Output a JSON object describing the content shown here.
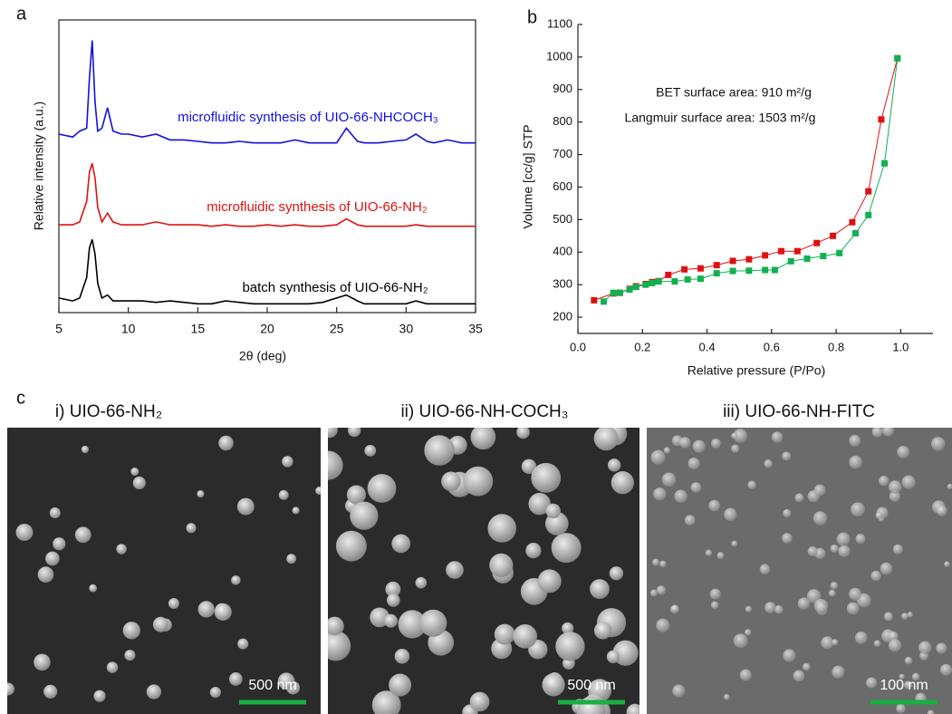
{
  "panel_labels": [
    "a",
    "b",
    "c"
  ],
  "chart_data": [
    {
      "type": "line",
      "x_label": "2θ (deg)",
      "y_label": "Relative intensity (a.u.)",
      "x": [
        5,
        6,
        6.5,
        7,
        7.2,
        7.4,
        7.6,
        7.8,
        8.1,
        8.5,
        8.9,
        9.5,
        10,
        11,
        12,
        13,
        14,
        15,
        16,
        17,
        18,
        19,
        20,
        21,
        22,
        23,
        24,
        25,
        25.7,
        26.5,
        27,
        28,
        29,
        30,
        30.7,
        31.5,
        32,
        33,
        34,
        35
      ],
      "series": [
        {
          "name": "microfluidic synthesis of UIO-66-NHCOCH₃",
          "color": "#1010e0",
          "values": [
            61,
            60,
            62,
            63,
            80,
            93,
            72,
            62,
            63,
            70,
            62,
            61,
            61,
            60,
            61,
            59,
            59,
            58.5,
            58,
            58,
            58.5,
            58,
            58,
            58,
            59,
            58,
            58,
            58,
            63,
            58.5,
            58,
            58,
            58.5,
            59,
            61,
            58.5,
            58,
            59,
            58,
            58
          ]
        },
        {
          "name": "microfluidic synthesis of UIO-66-NH₂",
          "color": "#e01010",
          "values": [
            30,
            30,
            31,
            38,
            48,
            51,
            46,
            36,
            31,
            34,
            31,
            30,
            30,
            30,
            31,
            30,
            30,
            30,
            29.5,
            30,
            29.5,
            29.5,
            30,
            29.5,
            30,
            29.5,
            29.5,
            30,
            32,
            30,
            29.5,
            29.5,
            29.5,
            29.5,
            30,
            29.5,
            29.5,
            29.5,
            29.5,
            29.5
          ]
        },
        {
          "name": "batch synthesis of UIO-66-NH₂",
          "color": "#000000",
          "values": [
            5,
            4,
            5,
            12,
            22,
            25,
            20,
            10,
            5,
            6,
            4,
            4,
            4,
            4,
            3.5,
            4,
            3.5,
            3,
            3,
            4,
            3.5,
            3,
            3,
            3,
            3,
            3,
            3.5,
            5,
            6,
            4,
            3,
            3,
            3,
            3,
            4,
            3,
            3,
            3,
            3,
            3
          ]
        }
      ],
      "xlim": [
        5,
        35
      ],
      "xticks": [
        5,
        10,
        15,
        20,
        25,
        30,
        35
      ],
      "ylim": [
        0,
        100
      ],
      "grid": false
    },
    {
      "type": "scatter",
      "x_label": "Relative pressure (P/Po)",
      "y_label": "Volume [cc/g] STP",
      "annotations": [
        "BET surface area: 910 m²/g",
        "Langmuir surface area: 1503 m²/g"
      ],
      "series": [
        {
          "color": "#e01010",
          "x": [
            0.05,
            0.11,
            0.13,
            0.16,
            0.18,
            0.21,
            0.23,
            0.25,
            0.28,
            0.33,
            0.38,
            0.43,
            0.48,
            0.53,
            0.58,
            0.63,
            0.68,
            0.74,
            0.79,
            0.85,
            0.9,
            0.94,
            0.99
          ],
          "values": [
            252,
            273,
            275,
            287,
            295,
            302,
            308,
            311,
            330,
            347,
            350,
            360,
            373,
            378,
            390,
            403,
            403,
            428,
            450,
            492,
            587,
            808,
            996
          ]
        },
        {
          "color": "#10b050",
          "x": [
            0.08,
            0.11,
            0.13,
            0.16,
            0.18,
            0.21,
            0.23,
            0.25,
            0.3,
            0.34,
            0.38,
            0.43,
            0.48,
            0.53,
            0.58,
            0.61,
            0.66,
            0.71,
            0.76,
            0.81,
            0.86,
            0.9,
            0.95,
            0.99
          ],
          "values": [
            248,
            275,
            275,
            285,
            293,
            300,
            305,
            310,
            310,
            316,
            318,
            335,
            342,
            343,
            345,
            345,
            372,
            380,
            388,
            397,
            458,
            514,
            673,
            996
          ]
        }
      ],
      "xlim": [
        0,
        1.1
      ],
      "xticks": [
        {
          "value": 0,
          "label": "0.0"
        },
        {
          "value": 0.2,
          "label": "0.2"
        },
        {
          "value": 0.4,
          "label": "0.4"
        },
        {
          "value": 0.6,
          "label": "0.6"
        },
        {
          "value": 0.8,
          "label": "0.8"
        },
        {
          "value": 1,
          "label": "1.0"
        }
      ],
      "ylim": [
        150,
        1100
      ],
      "yticks": [
        200,
        300,
        400,
        500,
        600,
        700,
        800,
        900,
        1000,
        1100
      ],
      "grid": false
    }
  ],
  "images": [
    {
      "title": "i) UIO-66-NH₂",
      "scale_bar": "500 nm"
    },
    {
      "title": "ii) UIO-66-NH-COCH₃",
      "scale_bar": "500 nm"
    },
    {
      "title": "iii) UIO-66-NH-FITC",
      "scale_bar": "100 nm"
    }
  ]
}
